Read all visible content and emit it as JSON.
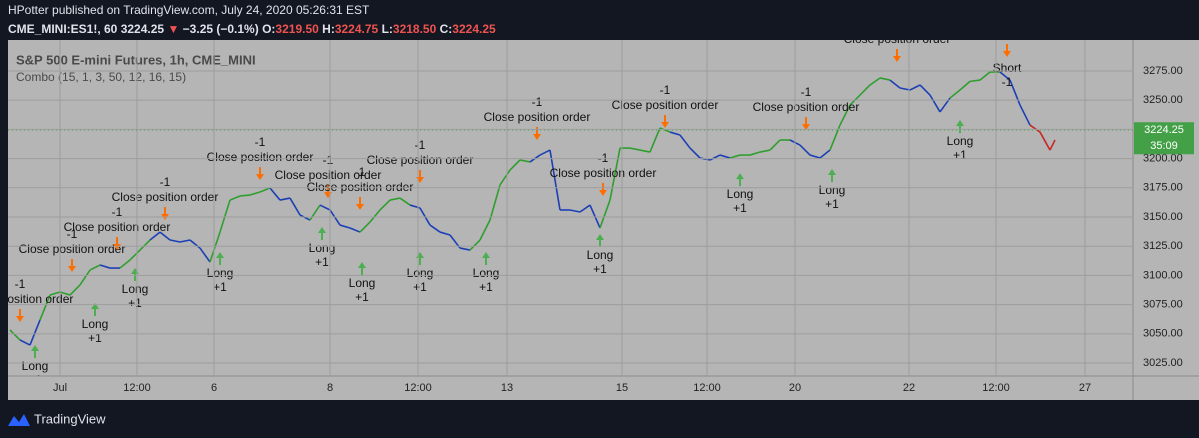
{
  "header": {
    "publisher": "HPotter published on TradingView.com, July 24, 2020 05:26:31 EST",
    "symbol": "CME_MINI:ES1!, 60",
    "price": "3224.25",
    "change_arrow": "▼",
    "change": "−3.25 (−0.1%)",
    "o_label": "O:",
    "o": "3219.50",
    "h_label": "H:",
    "h": "3224.75",
    "l_label": "L:",
    "l": "3218.50",
    "c_label": "C:",
    "c": "3224.25"
  },
  "footer": {
    "brand": "TradingView"
  },
  "chart_data": {
    "type": "line",
    "title": "S&P 500 E-mini Futures, 1h, CME_MINI",
    "subtitle": "Combo (15, 1, 3, 50, 12, 16, 15)",
    "x": [
      0,
      4,
      8,
      12,
      16,
      20,
      24,
      28,
      32,
      36,
      40,
      44,
      48,
      52,
      56,
      60,
      64,
      68,
      72,
      76,
      80,
      84,
      88,
      92,
      96,
      100,
      104,
      108,
      112,
      116,
      120,
      124,
      128,
      132,
      136,
      140,
      144,
      148,
      152,
      156,
      160,
      164,
      168,
      172,
      176,
      180,
      184,
      188,
      192,
      196,
      200,
      204,
      208,
      212,
      216,
      220,
      224,
      228,
      232,
      236,
      240,
      244,
      248,
      252,
      256,
      260,
      264,
      268,
      272,
      276,
      280,
      284,
      288,
      292,
      296,
      300,
      304,
      308,
      312,
      316,
      320,
      324,
      328,
      332,
      336,
      340,
      344,
      348,
      352,
      356,
      360,
      364,
      368,
      372,
      376,
      380,
      384,
      388,
      392,
      396,
      400,
      404,
      408,
      412,
      416,
      418
    ],
    "values": [
      3053.3,
      3044.7,
      3040.4,
      3061.8,
      3083.2,
      3085.8,
      3083.2,
      3091.8,
      3104.6,
      3108.9,
      3106.3,
      3106.3,
      3113.2,
      3121.7,
      3130.3,
      3137.1,
      3130.3,
      3128.6,
      3130.3,
      3123.4,
      3111.5,
      3137.1,
      3164.5,
      3168.0,
      3168.8,
      3171.4,
      3174.8,
      3164.5,
      3166.2,
      3151.7,
      3147.4,
      3160.2,
      3156.0,
      3143.1,
      3140.6,
      3137.1,
      3145.7,
      3156.0,
      3164.5,
      3166.2,
      3160.2,
      3157.7,
      3143.1,
      3137.1,
      3134.6,
      3123.4,
      3121.7,
      3130.3,
      3147.4,
      3177.4,
      3190.2,
      3198.8,
      3197.1,
      3203.0,
      3207.3,
      3156.0,
      3156.0,
      3154.3,
      3160.2,
      3140.6,
      3164.5,
      3209.0,
      3209.0,
      3207.3,
      3205.6,
      3226.2,
      3222.7,
      3220.2,
      3209.0,
      3200.5,
      3198.8,
      3203.0,
      3200.5,
      3203.0,
      3203.0,
      3205.6,
      3207.3,
      3215.9,
      3215.9,
      3211.6,
      3203.0,
      3200.5,
      3207.3,
      3228.7,
      3245.8,
      3254.4,
      3263.0,
      3269.0,
      3267.2,
      3260.4,
      3258.7,
      3263.0,
      3254.4,
      3239.9,
      3251.8,
      3258.7,
      3266.1,
      3267.2,
      3274.1,
      3274.1,
      3267.2,
      3245.8,
      3228.7,
      3222.7,
      3207.3,
      3215.9
    ],
    "colors": [
      "#2f9e2f",
      "#2f9e2f",
      "#1d3fb5",
      "#1d3fb5",
      "#2f9e2f",
      "#2f9e2f",
      "#2f9e2f",
      "#2f9e2f",
      "#2f9e2f",
      "#2f9e2f",
      "#1d3fb5",
      "#1d3fb5",
      "#2f9e2f",
      "#2f9e2f",
      "#2f9e2f",
      "#1d3fb5",
      "#1d3fb5",
      "#1d3fb5",
      "#1d3fb5",
      "#1d3fb5",
      "#1d3fb5",
      "#2f9e2f",
      "#2f9e2f",
      "#2f9e2f",
      "#2f9e2f",
      "#2f9e2f",
      "#2f9e2f",
      "#1d3fb5",
      "#1d3fb5",
      "#1d3fb5",
      "#1d3fb5",
      "#2f9e2f",
      "#1d3fb5",
      "#1d3fb5",
      "#1d3fb5",
      "#1d3fb5",
      "#2f9e2f",
      "#2f9e2f",
      "#2f9e2f",
      "#2f9e2f",
      "#2f9e2f",
      "#1d3fb5",
      "#1d3fb5",
      "#1d3fb5",
      "#1d3fb5",
      "#1d3fb5",
      "#1d3fb5",
      "#2f9e2f",
      "#2f9e2f",
      "#2f9e2f",
      "#2f9e2f",
      "#2f9e2f",
      "#2f9e2f",
      "#1d3fb5",
      "#1d3fb5",
      "#1d3fb5",
      "#1d3fb5",
      "#1d3fb5",
      "#1d3fb5",
      "#1d3fb5",
      "#2f9e2f",
      "#2f9e2f",
      "#2f9e2f",
      "#2f9e2f",
      "#2f9e2f",
      "#2f9e2f",
      "#2f9e2f",
      "#1d3fb5",
      "#1d3fb5",
      "#1d3fb5",
      "#1d3fb5",
      "#1d3fb5",
      "#1d3fb5",
      "#2f9e2f",
      "#2f9e2f",
      "#2f9e2f",
      "#2f9e2f",
      "#2f9e2f",
      "#2f9e2f",
      "#1d3fb5",
      "#1d3fb5",
      "#1d3fb5",
      "#1d3fb5",
      "#2f9e2f",
      "#2f9e2f",
      "#2f9e2f",
      "#2f9e2f",
      "#2f9e2f",
      "#2f9e2f",
      "#1d3fb5",
      "#1d3fb5",
      "#1d3fb5",
      "#1d3fb5",
      "#1d3fb5",
      "#1d3fb5",
      "#2f9e2f",
      "#2f9e2f",
      "#2f9e2f",
      "#2f9e2f",
      "#2f9e2f",
      "#1d3fb5",
      "#1d3fb5",
      "#1d3fb5",
      "#c62828",
      "#c62828",
      "#c62828"
    ],
    "xlim": [
      -0.8,
      449.2
    ],
    "xticks": [
      {
        "value": 20,
        "label": "Jul"
      },
      {
        "value": 50.8,
        "label": "12:00"
      },
      {
        "value": 81.6,
        "label": "6"
      },
      {
        "value": 128,
        "label": "8"
      },
      {
        "value": 163.2,
        "label": "12:00"
      },
      {
        "value": 198.8,
        "label": "13"
      },
      {
        "value": 244.8,
        "label": "15"
      },
      {
        "value": 278.8,
        "label": "12:00"
      },
      {
        "value": 314,
        "label": "20"
      },
      {
        "value": 359.6,
        "label": "22"
      },
      {
        "value": 394.4,
        "label": "12:00"
      },
      {
        "value": 430,
        "label": "27"
      }
    ],
    "ylim": [
      3013.9,
      3301.5
    ],
    "yticks": [
      {
        "value": 3025,
        "label": "3025.00"
      },
      {
        "value": 3050,
        "label": "3050.00"
      },
      {
        "value": 3075,
        "label": "3075.00"
      },
      {
        "value": 3100,
        "label": "3100.00"
      },
      {
        "value": 3125,
        "label": "3125.00"
      },
      {
        "value": 3150,
        "label": "3150.00"
      },
      {
        "value": 3175,
        "label": "3175.00"
      },
      {
        "value": 3200,
        "label": "3200.00"
      },
      {
        "value": 3225,
        "label": "3225.00"
      },
      {
        "value": 3250,
        "label": "3250.00"
      },
      {
        "value": 3275,
        "label": "3275.00"
      }
    ],
    "grid": true,
    "last_price": {
      "value": 3224.25,
      "label": "3224.25"
    },
    "countdown": "35:09",
    "long_signals": [
      {
        "x": 10,
        "price": 3040.4,
        "label": "Long",
        "qty": "+1"
      },
      {
        "x": 34,
        "price": 3076.4,
        "label": "Long",
        "qty": "+1"
      },
      {
        "x": 50,
        "price": 3106.3,
        "label": "Long",
        "qty": "+1"
      },
      {
        "x": 84,
        "price": 3120.0,
        "label": "Long",
        "qty": "+1"
      },
      {
        "x": 124.8,
        "price": 3141.4,
        "label": "Long",
        "qty": "+1"
      },
      {
        "x": 140.8,
        "price": 3111.5,
        "label": "Long",
        "qty": "+1"
      },
      {
        "x": 164,
        "price": 3120.0,
        "label": "Long",
        "qty": "+1"
      },
      {
        "x": 190.4,
        "price": 3120.0,
        "label": "Long",
        "qty": "+1"
      },
      {
        "x": 236,
        "price": 3135.4,
        "label": "Long",
        "qty": "+1"
      },
      {
        "x": 292,
        "price": 3187.6,
        "label": "Long",
        "qty": "+1"
      },
      {
        "x": 328.8,
        "price": 3191.1,
        "label": "Long",
        "qty": "+1"
      },
      {
        "x": 380,
        "price": 3233.0,
        "label": "Long",
        "qty": "+1"
      }
    ],
    "exit_signals": [
      {
        "x": 4,
        "price": 3060.1,
        "label": "Close position order",
        "qty": "-1"
      },
      {
        "x": 24.8,
        "price": 3102.9,
        "label": "Close position order",
        "qty": "-1"
      },
      {
        "x": 42.8,
        "price": 3121.7,
        "label": "Close position order",
        "qty": "-1"
      },
      {
        "x": 62,
        "price": 3147.4,
        "label": "Close position order",
        "qty": "-1"
      },
      {
        "x": 100,
        "price": 3181.6,
        "label": "Close position order",
        "qty": "-1"
      },
      {
        "x": 127.2,
        "price": 3166.2,
        "label": "Close position order",
        "qty": "-1"
      },
      {
        "x": 140,
        "price": 3156.0,
        "label": "Close position order",
        "qty": "-1"
      },
      {
        "x": 164,
        "price": 3179.1,
        "label": "Close position order",
        "qty": "-1"
      },
      {
        "x": 210.8,
        "price": 3215.9,
        "label": "Close position order",
        "qty": "-1"
      },
      {
        "x": 237.2,
        "price": 3168.0,
        "label": "Close position order",
        "qty": "-1"
      },
      {
        "x": 262,
        "price": 3226.2,
        "label": "Close position order",
        "qty": "-1"
      },
      {
        "x": 318.4,
        "price": 3224.4,
        "label": "Close position order",
        "qty": "-1"
      },
      {
        "x": 354.8,
        "price": 3282.7,
        "label": "Close position order",
        "qty": "-1"
      }
    ],
    "short_signals": [
      {
        "x": 398.8,
        "price": 3286.9,
        "label": "Short",
        "qty": "-1"
      }
    ]
  }
}
